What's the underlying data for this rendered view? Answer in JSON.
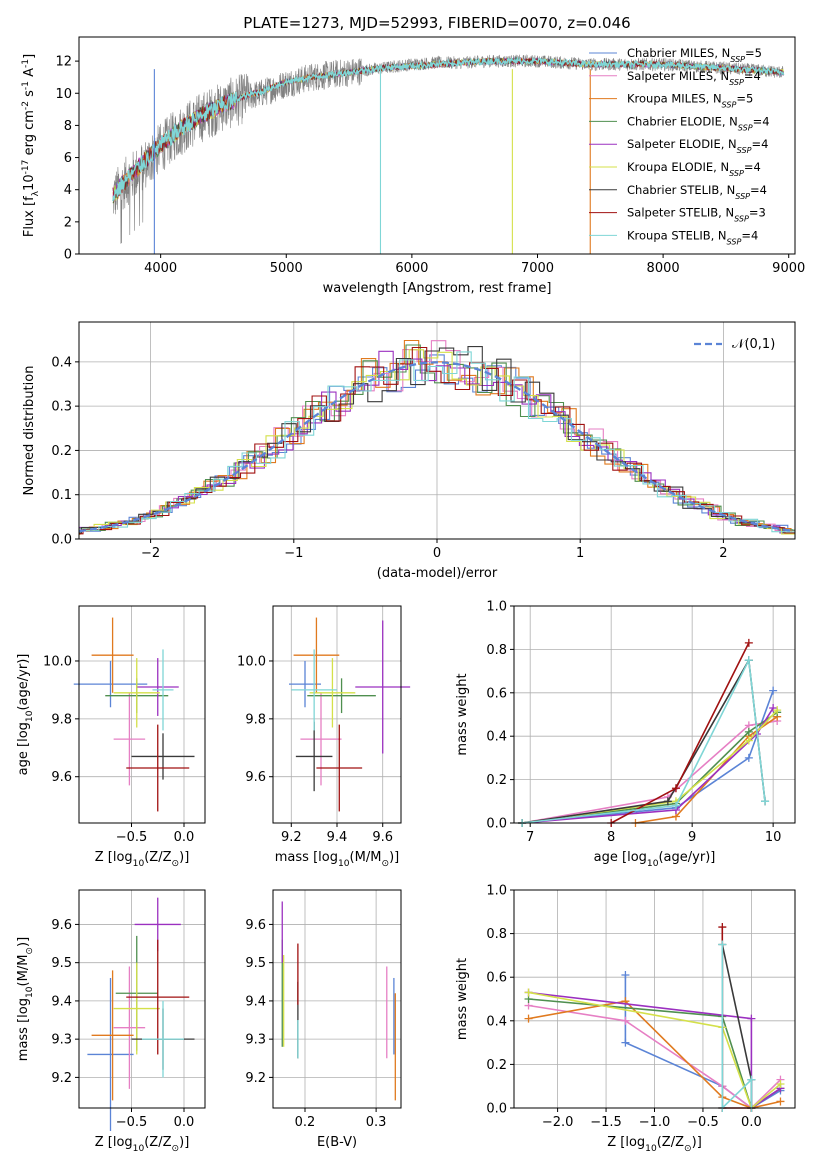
{
  "chart_data": [
    {
      "id": "spectrum",
      "type": "line",
      "title": "PLATE=1273, MJD=52993, FIBERID=0070, z=0.046",
      "xlabel": "wavelength [Angstrom, rest frame]",
      "ylabel": "Flux [f$_\\lambda$10$^{-17}$ erg cm$^{-2}$ s$^{-1}$ A$^{-1}$]",
      "xlim": [
        3350,
        9050
      ],
      "ylim": [
        0,
        13.5
      ],
      "xticks": [
        4000,
        5000,
        6000,
        7000,
        8000,
        9000
      ],
      "yticks": [
        0,
        2,
        4,
        6,
        8,
        10,
        12
      ],
      "observed": {
        "color": "#808080",
        "x": [
          3620,
          3700,
          3800,
          3900,
          4000,
          4100,
          4200,
          4300,
          4400,
          4500,
          4600,
          4700,
          4800,
          4900,
          5000,
          5200,
          5400,
          5600,
          5800,
          6000,
          6200,
          6400,
          6600,
          6800,
          7000,
          7200,
          7400,
          7600,
          7800,
          8000,
          8200,
          8400,
          8600,
          8800,
          8960
        ],
        "y": [
          3.5,
          4.3,
          5.0,
          5.8,
          6.6,
          7.3,
          7.9,
          8.4,
          8.8,
          9.2,
          9.5,
          9.8,
          10.0,
          10.3,
          10.6,
          11.0,
          11.2,
          11.4,
          11.6,
          11.8,
          11.9,
          11.9,
          12.0,
          12.0,
          12.0,
          11.9,
          11.8,
          11.8,
          11.8,
          11.8,
          11.7,
          11.6,
          11.5,
          11.4,
          11.3
        ]
      },
      "model": {
        "x": [
          3620,
          3700,
          3800,
          3900,
          4000,
          4100,
          4200,
          4300,
          4400,
          4500,
          4600,
          4700,
          4800,
          4900,
          5000,
          5200,
          5400,
          5600,
          5800,
          6000,
          6200,
          6400,
          6600,
          6800,
          7000,
          7200,
          7400,
          7600,
          7800,
          8000,
          8200,
          8400,
          8600,
          8800,
          8960
        ],
        "y": [
          3.6,
          4.4,
          5.2,
          6.0,
          6.8,
          7.4,
          8.0,
          8.5,
          8.9,
          9.3,
          9.6,
          9.9,
          10.1,
          10.4,
          10.7,
          11.0,
          11.2,
          11.4,
          11.6,
          11.7,
          11.8,
          11.9,
          12.0,
          12.0,
          12.0,
          11.9,
          11.8,
          11.8,
          11.8,
          11.8,
          11.7,
          11.6,
          11.5,
          11.4,
          11.3
        ]
      },
      "dropouts": [
        {
          "x": 3950,
          "label": "Chabrier MILES"
        },
        {
          "x": 5750,
          "label": "Kroupa STELIB"
        },
        {
          "x": 6800,
          "label": "Kroupa ELODIE"
        },
        {
          "x": 7420,
          "label": "Kroupa MILES"
        }
      ]
    },
    {
      "id": "residuals",
      "type": "line",
      "xlabel": "(data-model)/error",
      "ylabel": "Normed distribution",
      "xlim": [
        -2.5,
        2.5
      ],
      "ylim": [
        0,
        0.49
      ],
      "xticks": [
        -2,
        -1,
        0,
        1,
        2
      ],
      "yticks": [
        0.0,
        0.1,
        0.2,
        0.3,
        0.4
      ],
      "gaussian_label": "$\\mathcal{N}(0,1)$",
      "gaussian_color": "#5b84d6",
      "bin_width": 0.1
    },
    {
      "id": "age-Z",
      "type": "scatter",
      "xlabel": "Z [log$_{10}$(Z/Z$_\\odot$)]",
      "ylabel": "age  [log$_{10}$(age/yr)]",
      "xlim": [
        -1.0,
        0.2
      ],
      "ylim": [
        9.44,
        10.19
      ],
      "xticks": [
        -0.5,
        0.0
      ],
      "yticks": [
        9.6,
        9.8,
        10.0
      ],
      "points": [
        {
          "x": -0.7,
          "y": 9.92,
          "xerr": 0.35,
          "yerr": 0.08
        },
        {
          "x": -0.52,
          "y": 9.73,
          "xerr": 0.15,
          "yerr": 0.16
        },
        {
          "x": -0.68,
          "y": 10.02,
          "xerr": 0.2,
          "yerr": 0.13
        },
        {
          "x": -0.45,
          "y": 9.88,
          "xerr": 0.3,
          "yerr": 0.06
        },
        {
          "x": -0.25,
          "y": 9.91,
          "xerr": 0.2,
          "yerr": 0.1
        },
        {
          "x": -0.45,
          "y": 9.89,
          "xerr": 0.22,
          "yerr": 0.12
        },
        {
          "x": -0.2,
          "y": 9.67,
          "xerr": 0.3,
          "yerr": 0.08
        },
        {
          "x": -0.25,
          "y": 9.63,
          "xerr": 0.3,
          "yerr": 0.15
        },
        {
          "x": -0.2,
          "y": 9.9,
          "xerr": 0.1,
          "yerr": 0.14
        }
      ]
    },
    {
      "id": "age-mass",
      "type": "scatter",
      "xlabel": "mass [log$_{10}$(M/M$_\\odot$)]",
      "ylabel": "",
      "xlim": [
        9.12,
        9.68
      ],
      "ylim": [
        9.44,
        10.19
      ],
      "xticks": [
        9.2,
        9.4,
        9.6
      ],
      "yticks": [
        9.6,
        9.8,
        10.0
      ],
      "points": [
        {
          "x": 9.26,
          "y": 9.92,
          "xerr": 0.07,
          "yerr": 0.08
        },
        {
          "x": 9.33,
          "y": 9.73,
          "xerr": 0.09,
          "yerr": 0.16
        },
        {
          "x": 9.31,
          "y": 10.02,
          "xerr": 0.1,
          "yerr": 0.13
        },
        {
          "x": 9.42,
          "y": 9.88,
          "xerr": 0.15,
          "yerr": 0.06
        },
        {
          "x": 9.6,
          "y": 9.91,
          "xerr": 0.12,
          "yerr": 0.23
        },
        {
          "x": 9.38,
          "y": 9.89,
          "xerr": 0.1,
          "yerr": 0.12
        },
        {
          "x": 9.3,
          "y": 9.67,
          "xerr": 0.08,
          "yerr": 0.12
        },
        {
          "x": 9.41,
          "y": 9.63,
          "xerr": 0.1,
          "yerr": 0.15
        },
        {
          "x": 9.3,
          "y": 9.9,
          "xerr": 0.1,
          "yerr": 0.14
        }
      ]
    },
    {
      "id": "massweight-age",
      "type": "line",
      "xlabel": "age  [log$_{10}$(age/yr)]",
      "ylabel": "mass weight",
      "xlim": [
        6.8,
        10.27
      ],
      "ylim": [
        0,
        1.0
      ],
      "xticks": [
        7,
        8,
        9,
        10
      ],
      "yticks": [
        0.0,
        0.2,
        0.4,
        0.6,
        0.8,
        1.0
      ],
      "series": [
        {
          "x": [
            6.9,
            8.8,
            9.7,
            10.0
          ],
          "y": [
            0.0,
            0.07,
            0.3,
            0.61
          ]
        },
        {
          "x": [
            6.9,
            8.7,
            9.7,
            10.05
          ],
          "y": [
            0.0,
            0.12,
            0.45,
            0.47
          ]
        },
        {
          "x": [
            8.3,
            8.8,
            9.7,
            10.05
          ],
          "y": [
            0.0,
            0.03,
            0.4,
            0.49
          ]
        },
        {
          "x": [
            6.9,
            8.8,
            9.7,
            10.05
          ],
          "y": [
            0.0,
            0.09,
            0.42,
            0.51
          ]
        },
        {
          "x": [
            6.9,
            8.8,
            9.8,
            10.0
          ],
          "y": [
            0.0,
            0.06,
            0.41,
            0.53
          ]
        },
        {
          "x": [
            6.9,
            8.8,
            9.7,
            10.05
          ],
          "y": [
            0.0,
            0.1,
            0.38,
            0.52
          ]
        },
        {
          "x": [
            6.9,
            8.7,
            9.7,
            9.9
          ],
          "y": [
            0.0,
            0.1,
            0.75,
            0.1
          ]
        },
        {
          "x": [
            8.0,
            8.8,
            9.7
          ],
          "y": [
            0.0,
            0.16,
            0.83
          ]
        },
        {
          "x": [
            6.9,
            8.8,
            9.7,
            9.9
          ],
          "y": [
            0.0,
            0.08,
            0.75,
            0.1
          ]
        }
      ]
    },
    {
      "id": "mass-Z",
      "type": "scatter",
      "xlabel": "Z [log$_{10}$(Z/Z$_\\odot$)]",
      "ylabel": "mass [log$_{10}$(M/M$_\\odot$)]",
      "xlim": [
        -1.0,
        0.2
      ],
      "ylim": [
        9.12,
        9.69
      ],
      "xticks": [
        -0.5,
        0.0
      ],
      "yticks": [
        9.2,
        9.3,
        9.4,
        9.5,
        9.6
      ],
      "points": [
        {
          "x": -0.7,
          "y": 9.26,
          "xerr": 0.22,
          "yerr": 0.2
        },
        {
          "x": -0.52,
          "y": 9.33,
          "xerr": 0.15,
          "yerr": 0.16
        },
        {
          "x": -0.68,
          "y": 9.31,
          "xerr": 0.2,
          "yerr": 0.17
        },
        {
          "x": -0.45,
          "y": 9.42,
          "xerr": 0.2,
          "yerr": 0.15
        },
        {
          "x": -0.25,
          "y": 9.6,
          "xerr": 0.22,
          "yerr": 0.07
        },
        {
          "x": -0.45,
          "y": 9.38,
          "xerr": 0.22,
          "yerr": 0.12
        },
        {
          "x": -0.2,
          "y": 9.3,
          "xerr": 0.3,
          "yerr": 0.08
        },
        {
          "x": -0.25,
          "y": 9.41,
          "xerr": 0.3,
          "yerr": 0.15
        },
        {
          "x": -0.2,
          "y": 9.3,
          "xerr": 0.2,
          "yerr": 0.1
        }
      ]
    },
    {
      "id": "mass-ebv",
      "type": "scatter",
      "xlabel": "E(B-V)",
      "ylabel": "",
      "xlim": [
        0.155,
        0.335
      ],
      "ylim": [
        9.12,
        9.69
      ],
      "xticks": [
        0.2,
        0.3
      ],
      "yticks": [
        9.2,
        9.3,
        9.4,
        9.5,
        9.6
      ],
      "points": [
        {
          "x": 0.325,
          "y": 9.36,
          "xerr": 0.0,
          "yerr": 0.1
        },
        {
          "x": 0.315,
          "y": 9.37,
          "xerr": 0.0,
          "yerr": 0.12
        },
        {
          "x": 0.327,
          "y": 9.28,
          "xerr": 0.0,
          "yerr": 0.14
        },
        {
          "x": 0.168,
          "y": 9.42,
          "xerr": 0.0,
          "yerr": 0.14
        },
        {
          "x": 0.168,
          "y": 9.58,
          "xerr": 0.0,
          "yerr": 0.08
        },
        {
          "x": 0.17,
          "y": 9.4,
          "xerr": 0.0,
          "yerr": 0.12
        },
        {
          "x": 0.19,
          "y": 9.35,
          "xerr": 0.0,
          "yerr": 0.1
        },
        {
          "x": 0.19,
          "y": 9.47,
          "xerr": 0.0,
          "yerr": 0.08
        },
        {
          "x": 0.19,
          "y": 9.3,
          "xerr": 0.0,
          "yerr": 0.05
        }
      ]
    },
    {
      "id": "massweight-Z",
      "type": "line",
      "xlabel": "Z [log$_{10}$(Z/Z$_\\odot$)]",
      "ylabel": "mass weight",
      "xlim": [
        -2.45,
        0.45
      ],
      "ylim": [
        0,
        1.0
      ],
      "xticks": [
        -2.0,
        -1.5,
        -1.0,
        -0.5,
        0.0
      ],
      "yticks": [
        0.0,
        0.2,
        0.4,
        0.6,
        0.8,
        1.0
      ],
      "series": [
        {
          "x": [
            -1.3,
            -1.3,
            -0.3,
            0.0,
            0.3
          ],
          "y": [
            0.61,
            0.3,
            0.1,
            0.0,
            0.08
          ]
        },
        {
          "x": [
            -2.3,
            -1.3,
            -0.3,
            0.0,
            0.3
          ],
          "y": [
            0.47,
            0.4,
            0.1,
            0.0,
            0.13
          ]
        },
        {
          "x": [
            -2.3,
            -1.3,
            -0.3,
            0.0,
            0.3
          ],
          "y": [
            0.41,
            0.49,
            0.05,
            0.0,
            0.03
          ]
        },
        {
          "x": [
            -2.3,
            -0.3,
            0.0,
            0.3
          ],
          "y": [
            0.5,
            0.42,
            0.0,
            0.09
          ]
        },
        {
          "x": [
            -2.3,
            0.0,
            0.0,
            0.3
          ],
          "y": [
            0.53,
            0.41,
            0.0,
            0.09
          ]
        },
        {
          "x": [
            -2.3,
            -0.3,
            0.0,
            0.3
          ],
          "y": [
            0.53,
            0.37,
            0.0,
            0.11
          ]
        },
        {
          "x": [
            -0.3,
            -0.3,
            0.0,
            0.0
          ],
          "y": [
            0.0,
            0.75,
            0.13,
            0.0
          ]
        },
        {
          "x": [
            -0.3,
            -0.3,
            0.0,
            0.0
          ],
          "y": [
            0.83,
            0.0,
            0.0,
            0.0
          ]
        },
        {
          "x": [
            -0.3,
            -0.3,
            0.0,
            0.0
          ],
          "y": [
            0.75,
            0.0,
            0.13,
            0.0
          ]
        }
      ]
    }
  ],
  "legend": [
    {
      "label": "Chabrier MILES, N",
      "sub": "SSP",
      "n": "=5",
      "color": "#5b84d6"
    },
    {
      "label": "Salpeter MILES, N",
      "sub": "SSP",
      "n": "=4",
      "color": "#e67fc4"
    },
    {
      "label": "Kroupa MILES, N",
      "sub": "SSP",
      "n": "=5",
      "color": "#e07a1f"
    },
    {
      "label": "Chabrier ELODIE, N",
      "sub": "SSP",
      "n": "=4",
      "color": "#4f8f4f"
    },
    {
      "label": "Salpeter ELODIE, N",
      "sub": "SSP",
      "n": "=4",
      "color": "#9b30c0"
    },
    {
      "label": "Kroupa ELODIE, N",
      "sub": "SSP",
      "n": "=4",
      "color": "#d4e04a"
    },
    {
      "label": "Chabrier STELIB, N",
      "sub": "SSP",
      "n": "=4",
      "color": "#3a3a3a"
    },
    {
      "label": "Salpeter STELIB, N",
      "sub": "SSP",
      "n": "=3",
      "color": "#a01010"
    },
    {
      "label": "Kroupa STELIB, N",
      "sub": "SSP",
      "n": "=4",
      "color": "#7fd6d6"
    }
  ]
}
